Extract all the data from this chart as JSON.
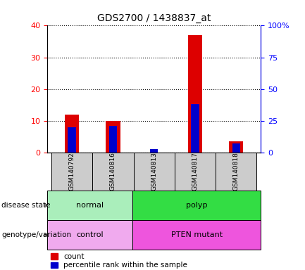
{
  "title": "GDS2700 / 1438837_at",
  "samples": [
    "GSM140792",
    "GSM140816",
    "GSM140813",
    "GSM140817",
    "GSM140818"
  ],
  "count_values": [
    12,
    10,
    0,
    37,
    3.5
  ],
  "percentile_values": [
    20,
    21,
    2.5,
    38,
    7
  ],
  "left_ylim": [
    0,
    40
  ],
  "right_ylim": [
    0,
    100
  ],
  "left_yticks": [
    0,
    10,
    20,
    30,
    40
  ],
  "right_yticks": [
    0,
    25,
    50,
    75,
    100
  ],
  "right_yticklabels": [
    "0",
    "25",
    "50",
    "75",
    "100%"
  ],
  "disease_state_groups": [
    {
      "label": "normal",
      "start": 0,
      "end": 2,
      "color": "#aaeebb"
    },
    {
      "label": "polyp",
      "start": 2,
      "end": 5,
      "color": "#33dd44"
    }
  ],
  "genotype_groups": [
    {
      "label": "control",
      "start": 0,
      "end": 2,
      "color": "#f0aaee"
    },
    {
      "label": "PTEN mutant",
      "start": 2,
      "end": 5,
      "color": "#ee55dd"
    }
  ],
  "bar_color_red": "#dd0000",
  "bar_color_blue": "#0000cc",
  "bar_width": 0.35,
  "sample_box_color": "#cccccc",
  "annotation_label_ds": "disease state",
  "annotation_label_gv": "genotype/variation",
  "legend_count": "count",
  "legend_pct": "percentile rank within the sample",
  "title_fontsize": 10,
  "tick_fontsize": 8,
  "label_fontsize": 8
}
